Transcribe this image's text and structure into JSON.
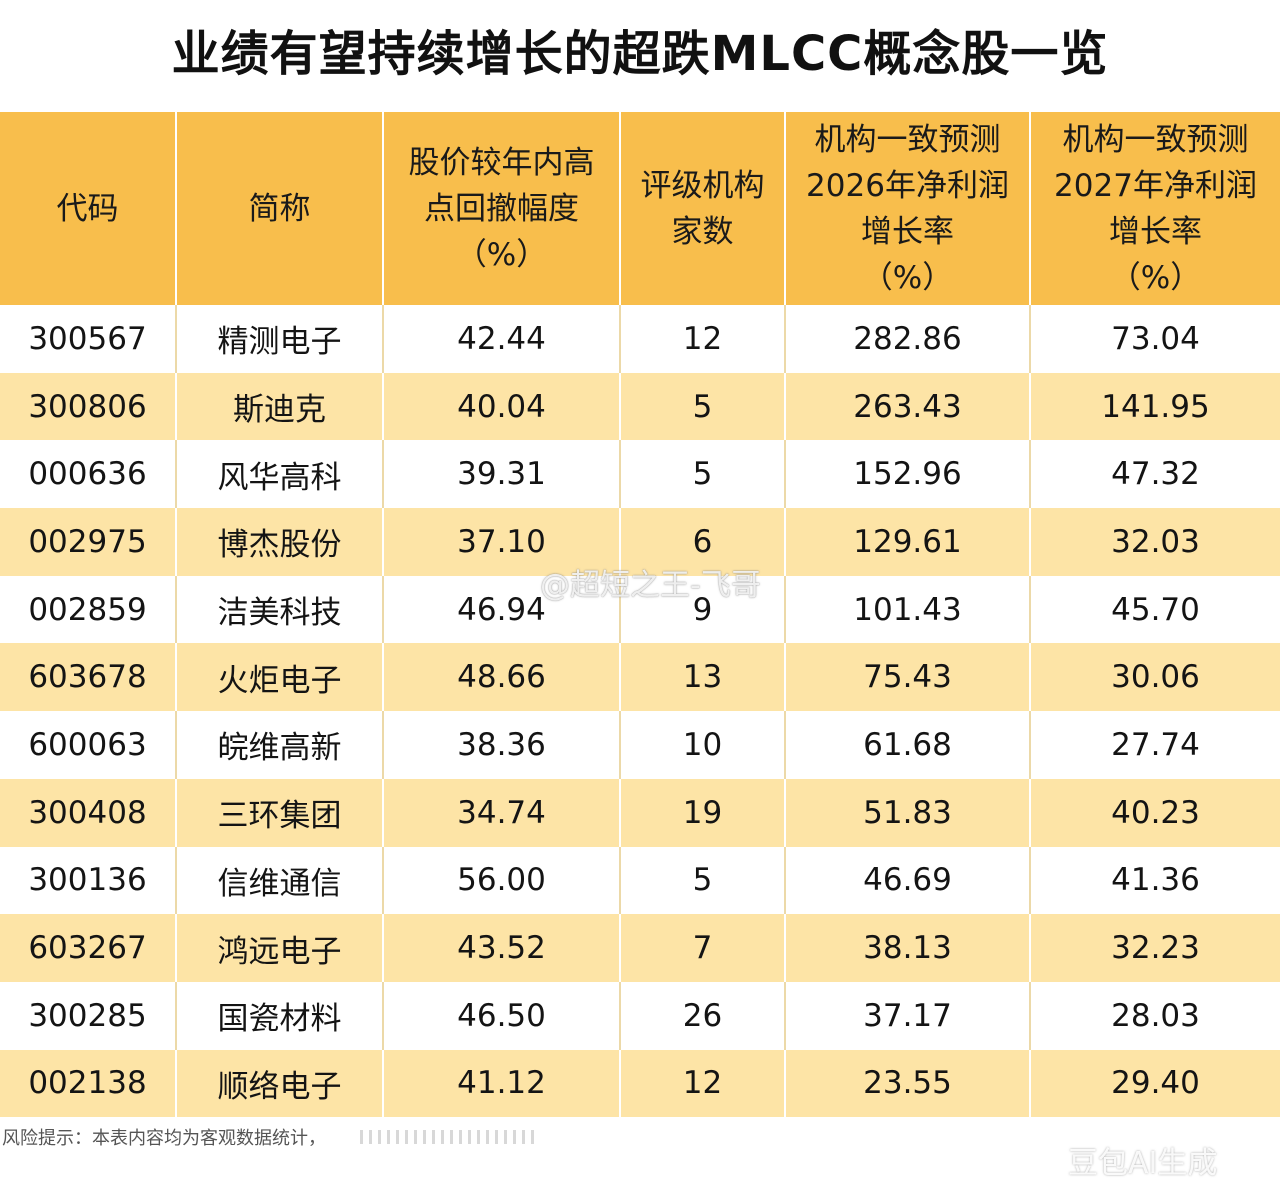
{
  "title": "业绩有望持续增长的超跌MLCC概念股一览",
  "table": {
    "headers": [
      "代码",
      "简称",
      "股价较年内高\n点回撤幅度\n（%）",
      "评级机构\n家数",
      "机构一致预测\n2026年净利润\n增长率\n（%）",
      "机构一致预测\n2027年净利润\n增长率\n（%）"
    ],
    "rows": [
      [
        "300567",
        "精测电子",
        "42.44",
        "12",
        "282.86",
        "73.04"
      ],
      [
        "300806",
        "斯迪克",
        "40.04",
        "5",
        "263.43",
        "141.95"
      ],
      [
        "000636",
        "风华高科",
        "39.31",
        "5",
        "152.96",
        "47.32"
      ],
      [
        "002975",
        "博杰股份",
        "37.10",
        "6",
        "129.61",
        "32.03"
      ],
      [
        "002859",
        "洁美科技",
        "46.94",
        "9",
        "101.43",
        "45.70"
      ],
      [
        "603678",
        "火炬电子",
        "48.66",
        "13",
        "75.43",
        "30.06"
      ],
      [
        "600063",
        "皖维高新",
        "38.36",
        "10",
        "61.68",
        "27.74"
      ],
      [
        "300408",
        "三环集团",
        "34.74",
        "19",
        "51.83",
        "40.23"
      ],
      [
        "300136",
        "信维通信",
        "56.00",
        "5",
        "46.69",
        "41.36"
      ],
      [
        "603267",
        "鸿远电子",
        "43.52",
        "7",
        "38.13",
        "32.23"
      ],
      [
        "300285",
        "国瓷材料",
        "46.50",
        "26",
        "37.17",
        "28.03"
      ],
      [
        "002138",
        "顺络电子",
        "41.12",
        "12",
        "23.55",
        "29.40"
      ]
    ]
  },
  "watermark": "@超短之王-飞哥",
  "footer": "风险提示：本表内容均为客观数据统计，",
  "ai_mark": "豆包AI生成",
  "colors": {
    "header_bg": "#f8be4c",
    "stripe_bg": "#fde4a6",
    "row_bg": "#ffffff"
  }
}
